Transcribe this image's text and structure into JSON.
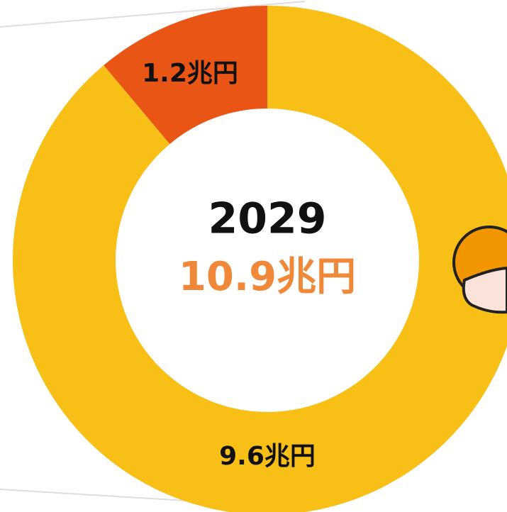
{
  "chart_data": {
    "type": "donut",
    "center_title": "2029",
    "center_total": "10.9兆円",
    "series": [
      {
        "values": [
          9.6,
          1.2
        ],
        "value_labels": [
          "9.6兆円",
          "1.2兆円"
        ],
        "colors": [
          "#F8BF17",
          "#E95514"
        ]
      }
    ]
  }
}
